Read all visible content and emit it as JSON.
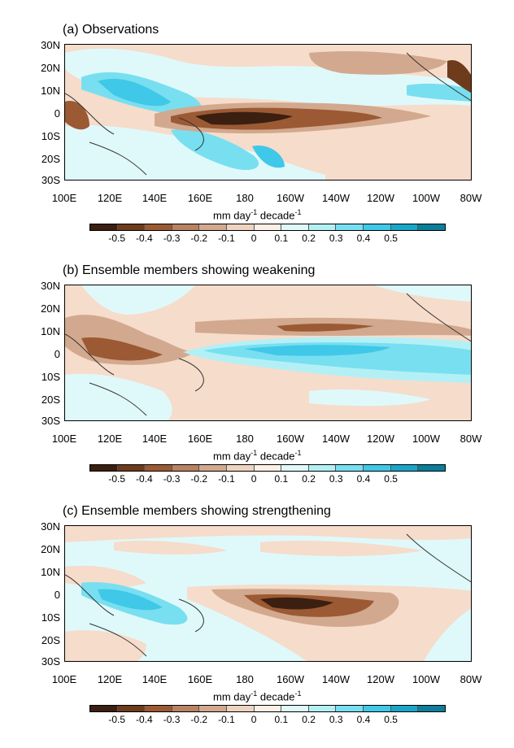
{
  "colorbar": {
    "unit_main": "mm day",
    "unit_sup1": "-1",
    "unit_decade": " decade",
    "unit_sup2": "-1",
    "colors": [
      "#3b1f10",
      "#6e3b1d",
      "#9b5a34",
      "#b98262",
      "#d2a98e",
      "#eed3c0",
      "#fbefe6",
      "#dff9fb",
      "#b3f0f6",
      "#78dff0",
      "#3fc8e8",
      "#1aa6c9",
      "#0a7e9a"
    ],
    "ticks": [
      "-0.5",
      "-0.4",
      "-0.3",
      "-0.2",
      "-0.1",
      "0",
      "0.1",
      "0.2",
      "0.3",
      "0.4",
      "0.5"
    ]
  },
  "lat_labels": [
    "30N",
    "20N",
    "10N",
    "0",
    "10S",
    "20S",
    "30S"
  ],
  "lon_labels": [
    "100E",
    "120E",
    "140E",
    "160E",
    "180",
    "160W",
    "140W",
    "120W",
    "100W",
    "80W"
  ],
  "panels": [
    {
      "title": "(a) Observations"
    },
    {
      "title": "(b) Ensemble members showing weakening"
    },
    {
      "title": "(c) Ensemble members showing strengthening"
    }
  ],
  "palette": {
    "land_outline": "#333333",
    "ocean_neutral": "#f6dccb"
  }
}
